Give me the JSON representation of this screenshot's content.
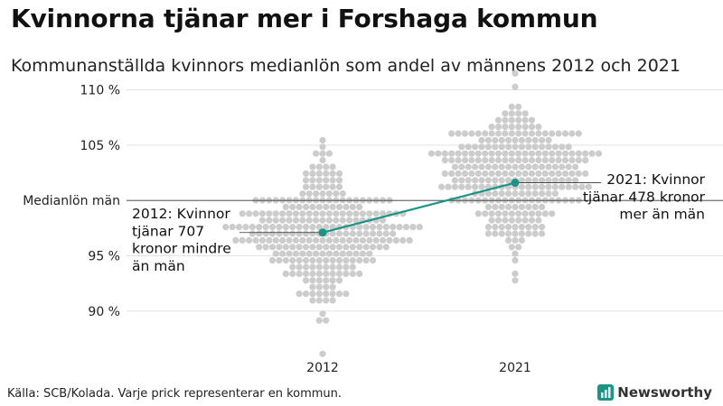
{
  "header": {
    "title": "Kvinnorna tjänar mer i Forshaga kommun",
    "subtitle": "Kommunanställda kvinnors medianlön som andel av männens 2012 och 2021"
  },
  "footer": {
    "source": "Källa: SCB/Kolada. Varje prick representerar en kommun.",
    "brand": "Newsworthy"
  },
  "colors": {
    "dots": "#cccccc",
    "highlight": "#1a9485",
    "grid": "#e2e2e2",
    "reference": "#333333",
    "logo": "#1a9485"
  },
  "chart_data": {
    "type": "scatter",
    "subtype": "beeswarm",
    "title": "Kvinnorna tjänar mer i Forshaga kommun",
    "ylabel": "",
    "ylim": [
      85.5,
      112
    ],
    "yticks": [
      90,
      95,
      105,
      110
    ],
    "ytick_labels": [
      "90 %",
      "95 %",
      "105 %",
      "110 %"
    ],
    "categories": [
      "2012",
      "2021"
    ],
    "reference_line": {
      "value": 100,
      "label": "Medianlön män"
    },
    "distributions": [
      {
        "category": "2012",
        "median": 97.5,
        "min": 86.2,
        "max": 105.3,
        "count": 290
      },
      {
        "category": "2021",
        "median": 102.1,
        "min": 92.6,
        "max": 111.5,
        "count": 290
      }
    ],
    "highlight": {
      "name": "Forshaga kommun",
      "values": [
        {
          "category": "2012",
          "value": 97.1
        },
        {
          "category": "2021",
          "value": 101.6
        }
      ]
    },
    "annotations": [
      {
        "category": "2012",
        "lines": [
          "2012: Kvinnor",
          "tjänar 707",
          "kronor mindre",
          "än män"
        ]
      },
      {
        "category": "2021",
        "lines": [
          "2021: Kvinnor",
          "tjänar 478 kronor",
          "mer än män"
        ]
      }
    ]
  }
}
